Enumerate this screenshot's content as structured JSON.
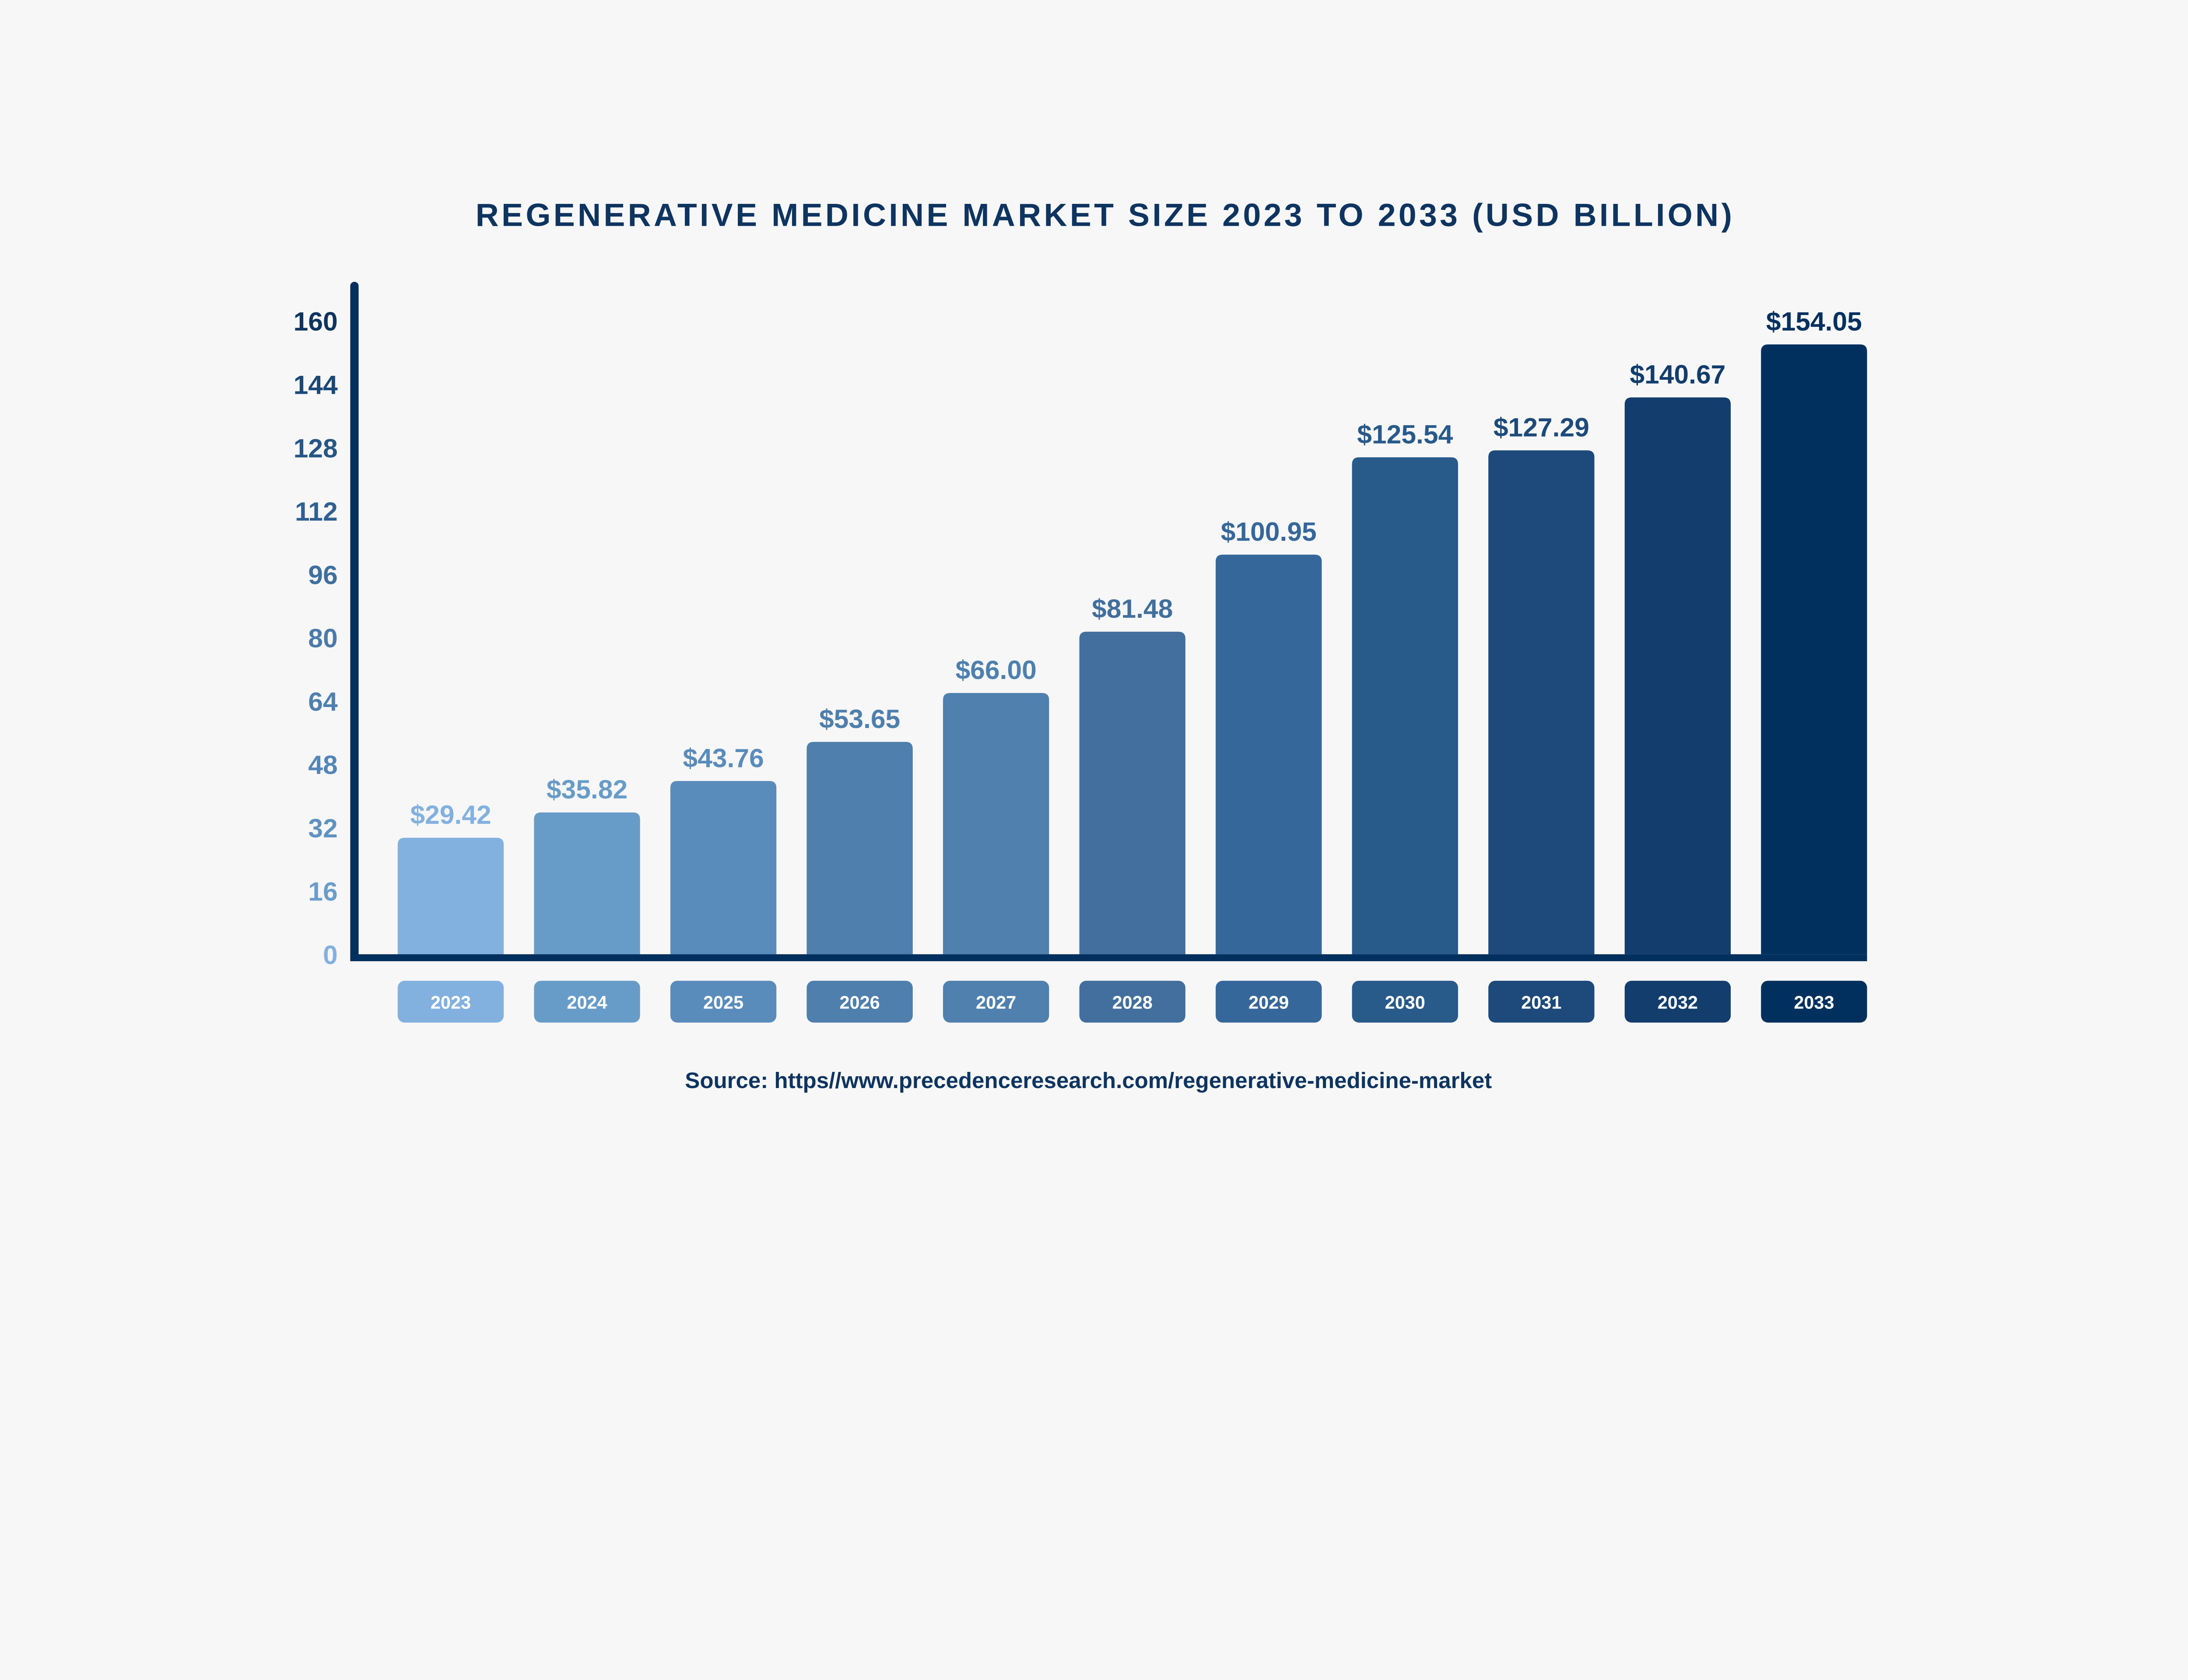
{
  "chart_data": {
    "type": "bar",
    "title": "REGENERATIVE MEDICINE MARKET SIZE 2023 TO 2033 (USD BILLION)",
    "xlabel": "",
    "ylabel": "",
    "categories": [
      "2023",
      "2024",
      "2025",
      "2026",
      "2027",
      "2028",
      "2029",
      "2030",
      "2031",
      "2032",
      "2033"
    ],
    "values": [
      29.42,
      35.82,
      43.76,
      53.65,
      66.0,
      81.48,
      100.95,
      125.54,
      127.29,
      140.67,
      154.05
    ],
    "value_labels": [
      "$29.42",
      "$35.82",
      "$43.76",
      "$53.65",
      "$66.00",
      "$81.48",
      "$100.95",
      "$125.54",
      "$127.29",
      "$140.67",
      "$154.05"
    ],
    "bar_colors": [
      "#82b1df",
      "#689cc8",
      "#5a8cbb",
      "#4e7fad",
      "#4f80ae",
      "#426f9d",
      "#36679a",
      "#285a8a",
      "#1d4a7a",
      "#123d6c",
      "#02305e"
    ],
    "ylim": [
      0,
      160
    ],
    "yticks": [
      0,
      16,
      32,
      48,
      64,
      80,
      96,
      112,
      128,
      144,
      160
    ],
    "ytick_colors": [
      "#82b1df",
      "#6a9dcb",
      "#5f92c2",
      "#5486b8",
      "#4f80ae",
      "#4a7aaa",
      "#3f6f9f",
      "#2f6192",
      "#265686",
      "#1b4977",
      "#0e3460"
    ],
    "axis_color": "#02305e",
    "grid": false,
    "legend": "none",
    "source": "Source: https//www.precedenceresearch.com/regenerative-medicine-market"
  }
}
